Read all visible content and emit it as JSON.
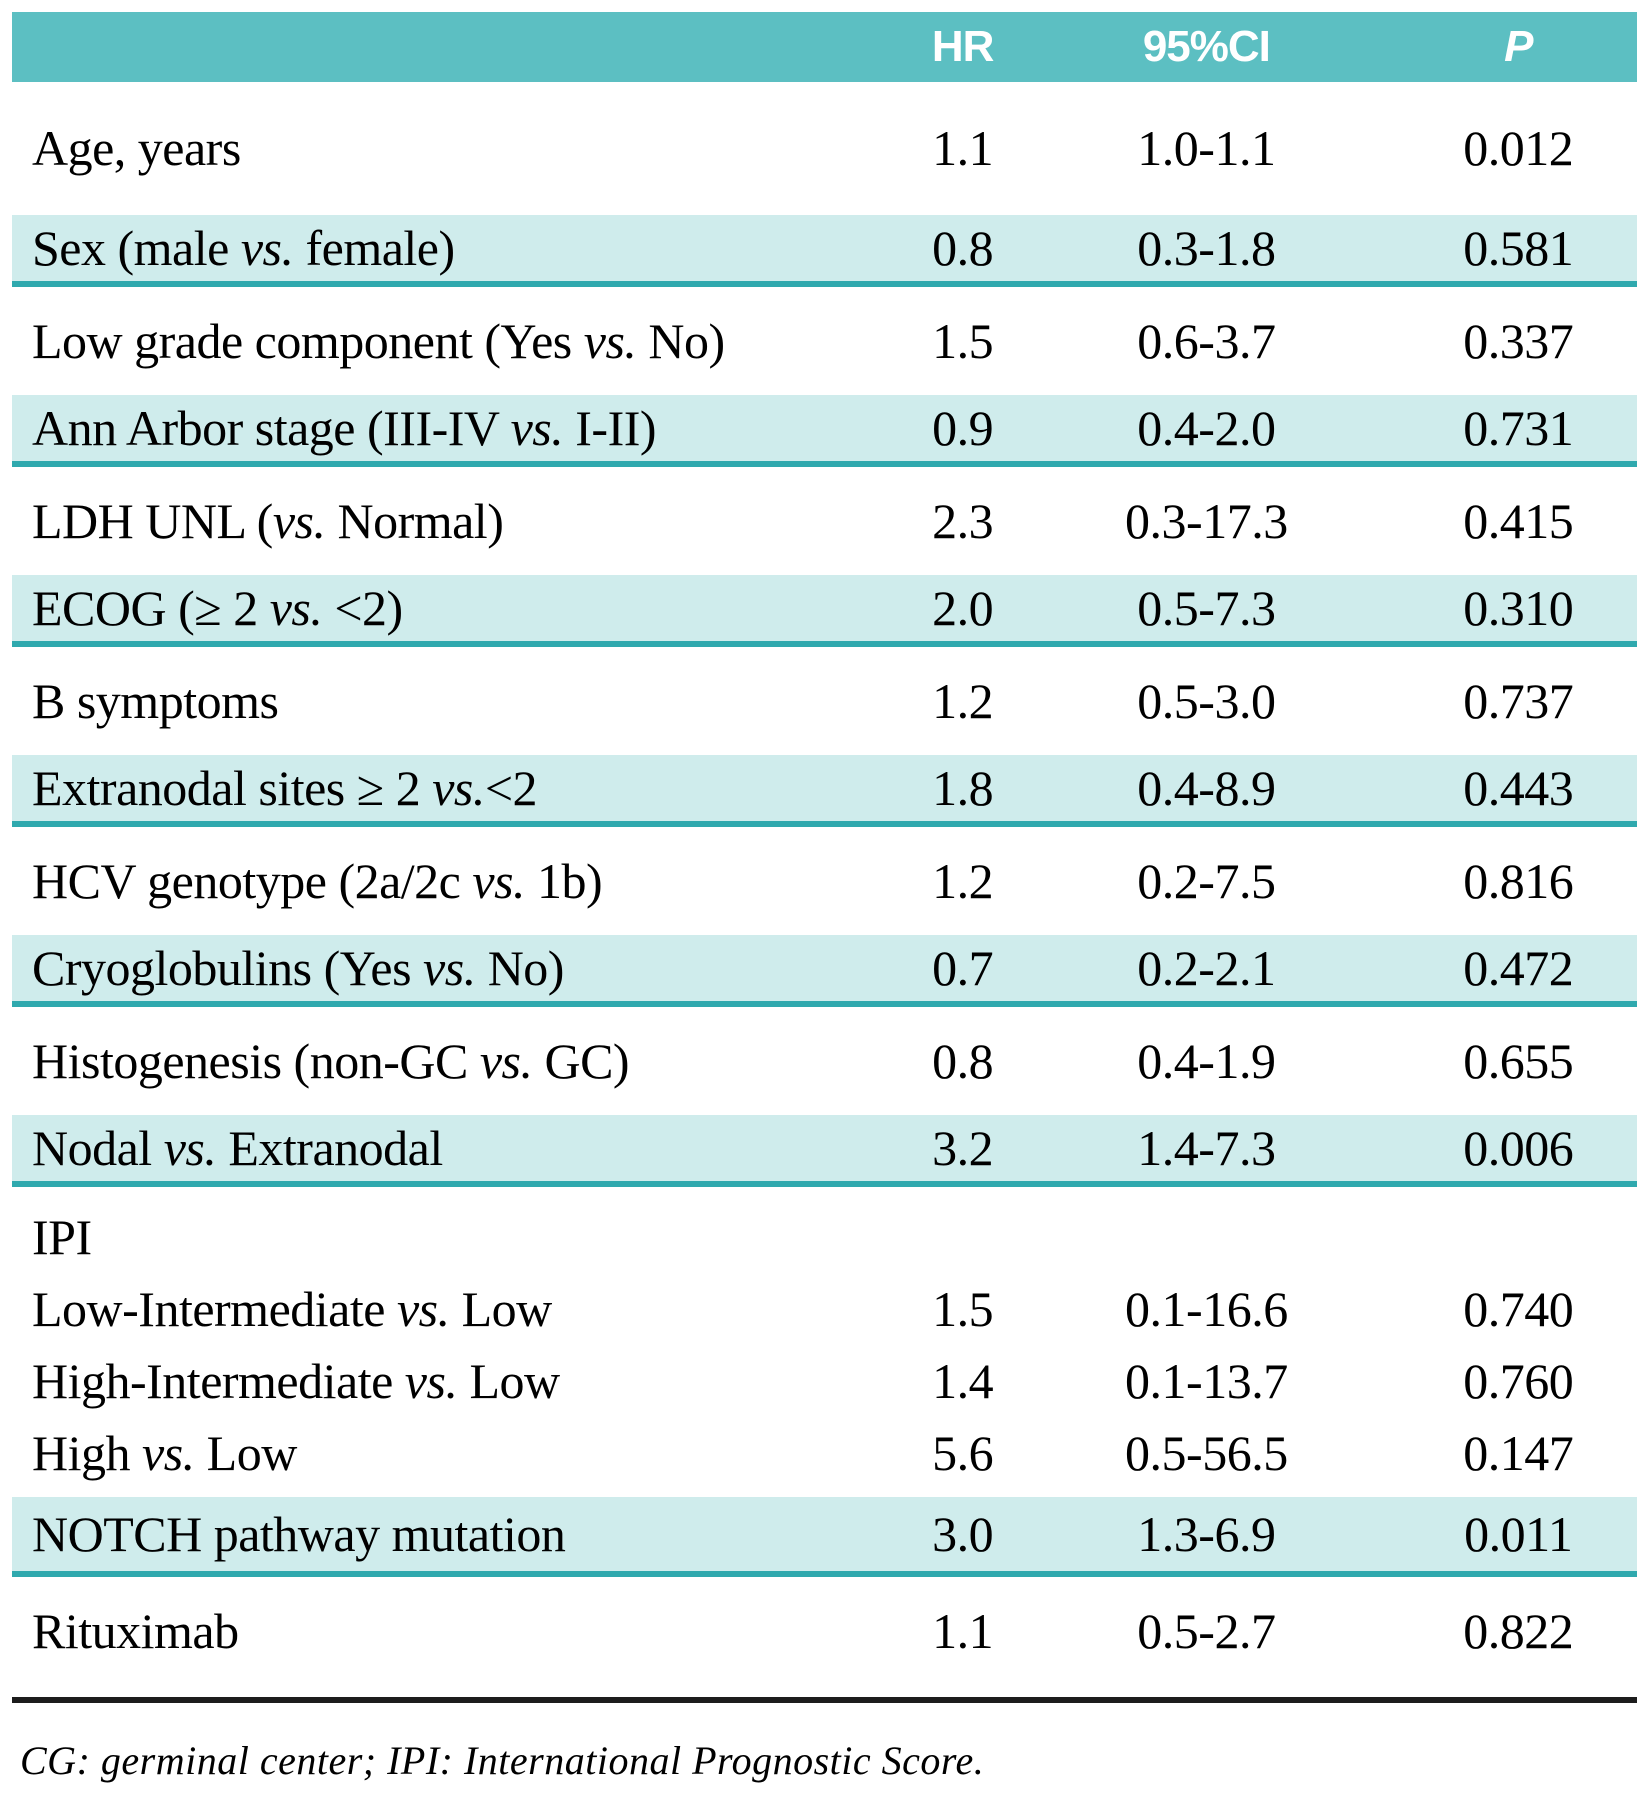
{
  "theme": {
    "teal": "#5cbfc2",
    "shade": "#cfecec",
    "line": "#2fa9ae"
  },
  "header": {
    "label": "",
    "hr": "HR",
    "ci": "95%CI",
    "p": "P"
  },
  "rows": [
    {
      "label_pre": "Age, years",
      "label_vs": "",
      "label_post": "",
      "hr": "1.1",
      "ci": "1.0-1.1",
      "p": "0.012"
    },
    {
      "label_pre": "Sex (male ",
      "label_vs": "vs.",
      "label_post": " female)",
      "hr": "0.8",
      "ci": "0.3-1.8",
      "p": "0.581"
    },
    {
      "label_pre": "Low grade component (Yes ",
      "label_vs": "vs.",
      "label_post": " No)",
      "hr": "1.5",
      "ci": "0.6-3.7",
      "p": "0.337"
    },
    {
      "label_pre": "Ann Arbor stage (III-IV ",
      "label_vs": "vs.",
      "label_post": " I-II)",
      "hr": "0.9",
      "ci": "0.4-2.0",
      "p": "0.731"
    },
    {
      "label_pre": "LDH UNL (",
      "label_vs": "vs.",
      "label_post": " Normal)",
      "hr": "2.3",
      "ci": "0.3-17.3",
      "p": "0.415"
    },
    {
      "label_pre": "ECOG (≥ 2 ",
      "label_vs": "vs.",
      "label_post": " <2)",
      "hr": "2.0",
      "ci": "0.5-7.3",
      "p": "0.310"
    },
    {
      "label_pre": "B symptoms",
      "label_vs": "",
      "label_post": "",
      "hr": "1.2",
      "ci": "0.5-3.0",
      "p": "0.737"
    },
    {
      "label_pre": "Extranodal sites ≥ 2 ",
      "label_vs": "vs.",
      "label_post": "<2",
      "hr": "1.8",
      "ci": "0.4-8.9",
      "p": "0.443"
    },
    {
      "label_pre": "HCV genotype (2a/2c ",
      "label_vs": "vs.",
      "label_post": " 1b)",
      "hr": "1.2",
      "ci": "0.2-7.5",
      "p": "0.816"
    },
    {
      "label_pre": "Cryoglobulins (Yes ",
      "label_vs": "vs.",
      "label_post": " No)",
      "hr": "0.7",
      "ci": "0.2-2.1",
      "p": "0.472"
    },
    {
      "label_pre": "Histogenesis (non-GC ",
      "label_vs": "vs.",
      "label_post": " GC)",
      "hr": "0.8",
      "ci": "0.4-1.9",
      "p": "0.655"
    },
    {
      "label_pre": "Nodal ",
      "label_vs": "vs.",
      "label_post": " Extranodal",
      "hr": "3.2",
      "ci": "1.4-7.3",
      "p": "0.006"
    },
    {
      "label_pre": "IPI",
      "label_vs": "",
      "label_post": "",
      "hr": "",
      "ci": "",
      "p": ""
    },
    {
      "label_pre": "Low-Intermediate ",
      "label_vs": "vs.",
      "label_post": " Low",
      "hr": "1.5",
      "ci": "0.1-16.6",
      "p": "0.740"
    },
    {
      "label_pre": "High-Intermediate ",
      "label_vs": "vs.",
      "label_post": " Low",
      "hr": "1.4",
      "ci": "0.1-13.7",
      "p": "0.760"
    },
    {
      "label_pre": "High ",
      "label_vs": "vs.",
      "label_post": " Low",
      "hr": "5.6",
      "ci": "0.5-56.5",
      "p": "0.147"
    },
    {
      "label_pre": "NOTCH pathway mutation",
      "label_vs": "",
      "label_post": "",
      "hr": "3.0",
      "ci": "1.3-6.9",
      "p": "0.011"
    },
    {
      "label_pre": "Rituximab",
      "label_vs": "",
      "label_post": "",
      "hr": "1.1",
      "ci": "0.5-2.7",
      "p": "0.822"
    }
  ],
  "footnote": "CG: germinal center; IPI: International Prognostic Score."
}
